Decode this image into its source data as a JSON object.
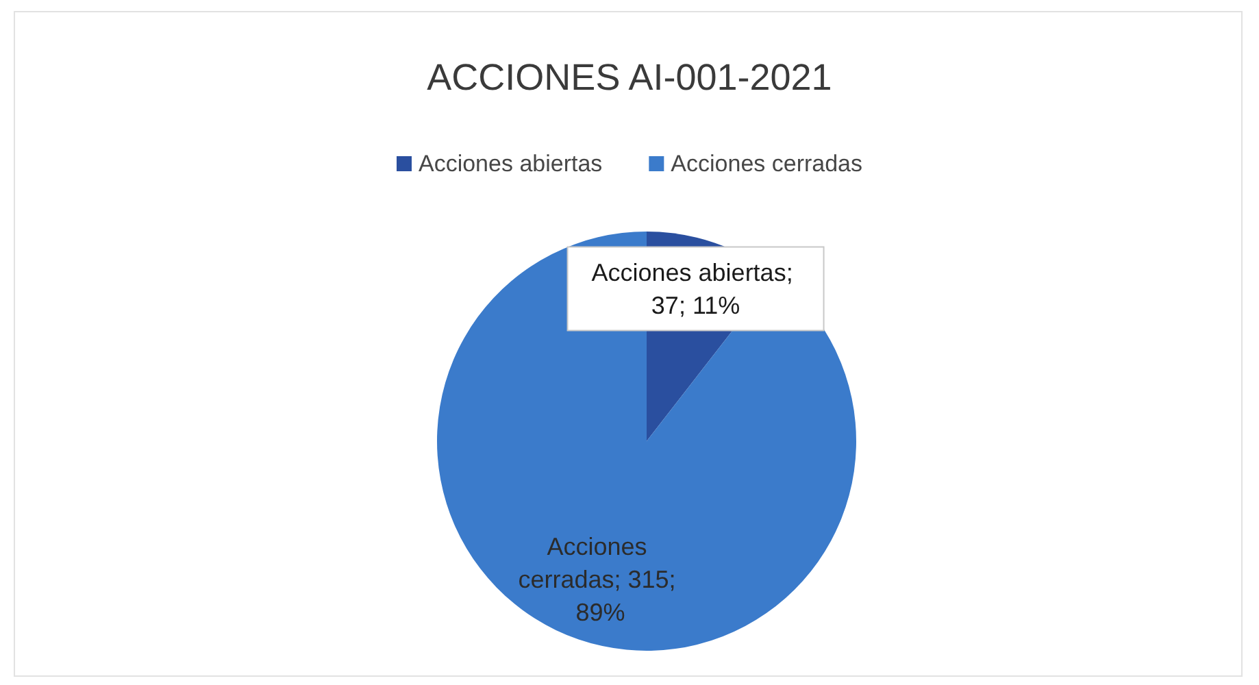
{
  "chart_data": {
    "type": "pie",
    "title": "ACCIONES AI-001-2021",
    "categories": [
      "Acciones abiertas",
      "Acciones cerradas"
    ],
    "values": [
      37,
      315
    ],
    "colors": [
      "#2a4f9f",
      "#3b7bcb"
    ],
    "value_labels": [
      "Acciones abiertas; 37; 11%",
      "Acciones cerradas; 315; 89%"
    ],
    "legend": "top"
  }
}
